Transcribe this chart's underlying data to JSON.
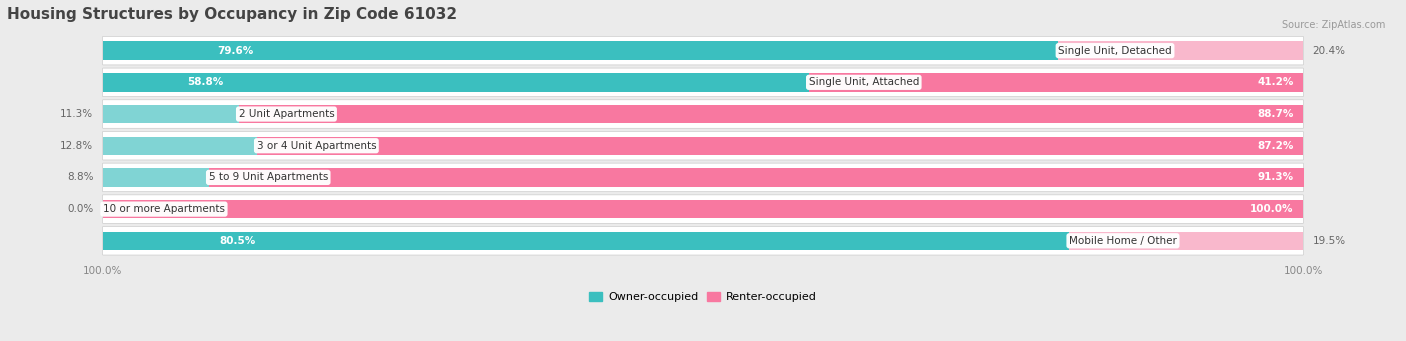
{
  "title": "Housing Structures by Occupancy in Zip Code 61032",
  "source": "Source: ZipAtlas.com",
  "categories": [
    "Single Unit, Detached",
    "Single Unit, Attached",
    "2 Unit Apartments",
    "3 or 4 Unit Apartments",
    "5 to 9 Unit Apartments",
    "10 or more Apartments",
    "Mobile Home / Other"
  ],
  "owner_pct": [
    79.6,
    58.8,
    11.3,
    12.8,
    8.8,
    0.0,
    80.5
  ],
  "renter_pct": [
    20.4,
    41.2,
    88.7,
    87.2,
    91.3,
    100.0,
    19.5
  ],
  "owner_color": "#3bbfbf",
  "renter_color": "#f878a0",
  "owner_color_light": "#80d4d4",
  "renter_color_light": "#f9b8cc",
  "bg_color": "#ebebeb",
  "row_bg_light": "#f5f5f5",
  "row_bg_dark": "#e0e0e0",
  "title_fontsize": 11,
  "label_fontsize": 7.5,
  "bar_label_fontsize": 7.5,
  "legend_fontsize": 8,
  "axis_label_fontsize": 7.5
}
